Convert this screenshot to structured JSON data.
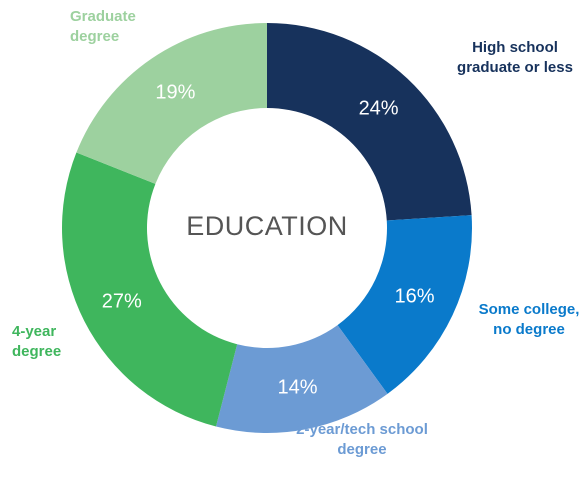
{
  "chart_data": {
    "type": "donut",
    "center_label": "EDUCATION",
    "categories": [
      "High school graduate or less",
      "Some college, no degree",
      "2-year/tech school degree",
      "4-year degree",
      "Graduate degree"
    ],
    "values": [
      24,
      16,
      14,
      27,
      19
    ],
    "value_labels": [
      "24%",
      "16%",
      "14%",
      "27%",
      "19%"
    ],
    "colors": [
      "#17325c",
      "#0a7acb",
      "#6c9bd4",
      "#3fb65d",
      "#9dd19f"
    ]
  }
}
